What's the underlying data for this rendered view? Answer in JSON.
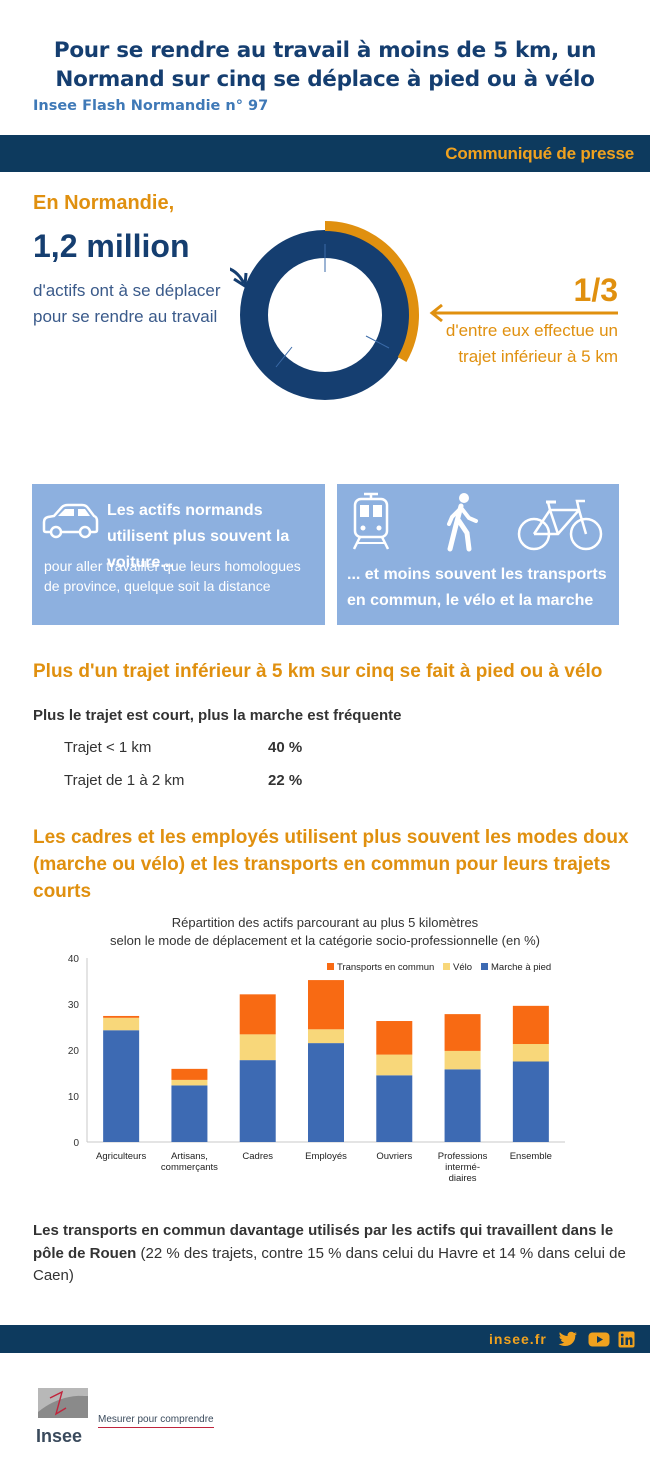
{
  "header": {
    "title_line1": "Pour se rendre au travail à moins de 5 km, un",
    "title_line2": "Normand sur cinq se déplace à pied ou à vélo",
    "subtitle": "Insee Flash Normandie n° 97",
    "press_label": "Communiqué de presse"
  },
  "intro": {
    "region": "En Normandie,",
    "million": "1,2 million",
    "million_desc": "d'actifs ont à se déplacer pour se rendre au travail",
    "fraction": "1/3",
    "fraction_desc": "d'entre eux effectue un trajet inférieur à 5 km",
    "share_short_trips": 0.3333,
    "colors": {
      "main": "#153e70",
      "accent": "#e0900f"
    }
  },
  "boxes": {
    "left_bold": "Les actifs normands utilisent plus souvent la voiture...",
    "left_small": "pour aller travailler que leurs homologues de province, quelque soit la distance",
    "right_bold": "... et moins souvent les transports en commun, le vélo et la marche",
    "icons": [
      "car-icon",
      "train-icon",
      "pedestrian-icon",
      "bicycle-icon"
    ]
  },
  "section1": {
    "heading": "Plus d'un trajet inférieur à 5 km sur cinq se fait à pied ou à vélo",
    "subheading": "Plus le trajet est court, plus la marche est fréquente",
    "rows": [
      {
        "label": "Trajet < 1 km",
        "value": "40 %"
      },
      {
        "label": "Trajet de 1 à 2 km",
        "value": "22 %"
      }
    ]
  },
  "section2": {
    "heading_line1": "Les cadres et les employés utilisent plus souvent les modes doux",
    "heading_line2": "(marche ou vélo) et les transports en commun pour leurs trajets",
    "heading_line3": "courts"
  },
  "chart_data": {
    "type": "bar",
    "stacked": true,
    "title_line1": "Répartition des actifs parcourant au plus 5 kilomètres",
    "title_line2": "selon le mode de déplacement et la catégorie socio-professionnelle (en %)",
    "categories": [
      [
        "Agriculteurs"
      ],
      [
        "Artisans,",
        "commerçants"
      ],
      [
        "Cadres"
      ],
      [
        "Employés"
      ],
      [
        "Ouvriers"
      ],
      [
        "Professions",
        "intermé-",
        "diaires"
      ],
      [
        "Ensemble"
      ]
    ],
    "series": [
      {
        "name": "Marche à pied",
        "color": "#3d6ab3",
        "values": [
          24.3,
          12.3,
          17.8,
          21.5,
          14.5,
          15.8,
          17.5
        ]
      },
      {
        "name": "Vélo",
        "color": "#f8d77a",
        "values": [
          2.7,
          1.2,
          5.6,
          3.0,
          4.5,
          4.0,
          3.8
        ]
      },
      {
        "name": "Transports en commun",
        "color": "#f86a13",
        "values": [
          0.4,
          2.4,
          8.7,
          10.7,
          7.3,
          8.0,
          8.3
        ]
      }
    ],
    "legend_order": [
      "Transports en commun",
      "Vélo",
      "Marche à pied"
    ],
    "ylim": [
      0,
      40
    ],
    "yticks": [
      0,
      10,
      20,
      30,
      40
    ],
    "grid": false,
    "legend_position": "top-right"
  },
  "closing": {
    "bold": "Les transports en commun davantage utilisés par les actifs qui travaillent dans le pôle de Rouen",
    "normal": " (22 % des trajets, contre 15 % dans celui du Havre et 14 % dans celui de Caen)"
  },
  "footer": {
    "site": "insee.fr",
    "social_icons": [
      "twitter-icon",
      "youtube-icon",
      "linkedin-icon"
    ],
    "logo_text": "Insee",
    "tagline": "Mesurer pour comprendre"
  }
}
